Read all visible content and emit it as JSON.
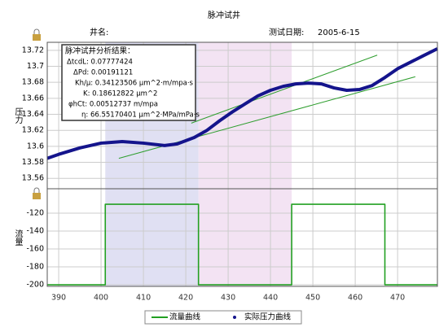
{
  "title": "脉冲试井",
  "well_name_label": "井名:",
  "test_date_label": "测试日期:",
  "test_date": "2005-6-15",
  "chart_data": [
    {
      "type": "line",
      "ylabel": "压力",
      "x": [
        387.3,
        390,
        395,
        400,
        405,
        410,
        415,
        418,
        422,
        425,
        428,
        431,
        434,
        437,
        440,
        443,
        446,
        449,
        452,
        455,
        458,
        461,
        464,
        467,
        470,
        473,
        476,
        479.4
      ],
      "series": [
        {
          "name": "实际压力曲线",
          "color": "#14148c",
          "values": [
            13.585,
            13.59,
            13.598,
            13.604,
            13.606,
            13.604,
            13.601,
            13.603,
            13.611,
            13.62,
            13.632,
            13.643,
            13.653,
            13.663,
            13.67,
            13.675,
            13.678,
            13.679,
            13.678,
            13.673,
            13.67,
            13.671,
            13.676,
            13.686,
            13.697,
            13.705,
            13.713,
            13.722
          ]
        }
      ],
      "trend_lines": [
        {
          "color": "#2e9e2e",
          "x": [
            421.3,
            465.2
          ],
          "values": [
            13.629,
            13.714
          ]
        },
        {
          "color": "#2e9e2e",
          "x": [
            404.2,
            474.2
          ],
          "values": [
            13.585,
            13.687
          ]
        }
      ],
      "bands": [
        {
          "from": 401,
          "to": 423,
          "color": "#d8d8f0"
        },
        {
          "from": 423,
          "to": 445,
          "color": "#f0dcf0"
        }
      ],
      "xlim": [
        387.3,
        479.4
      ],
      "ylim": [
        13.547,
        13.73
      ],
      "xticks": [
        390,
        400,
        410,
        420,
        430,
        440,
        450,
        460,
        470
      ],
      "yticks": [
        13.56,
        13.58,
        13.6,
        13.62,
        13.64,
        13.66,
        13.68,
        13.7,
        13.72
      ],
      "grid": true,
      "annotation": {
        "title": "脉冲试井分析结果：",
        "lines": [
          "ΔtcdL: 0.07777424",
          "ΔPd: 0.00191121",
          "Kh/μ: 0.34123506 μm^2·m/mpa·s",
          "K: 0.18612822 μm^2",
          "φhCt: 0.00512737 m/mpa",
          "η: 66.55170401 μm^2·MPa/mPa·s"
        ]
      }
    },
    {
      "type": "line",
      "ylabel": "流量",
      "x": [
        387.3,
        401,
        401,
        423,
        423,
        445,
        445,
        467,
        467,
        479.4
      ],
      "series": [
        {
          "name": "流量曲线",
          "color": "#22a022",
          "values": [
            -200,
            -200,
            -110,
            -110,
            -200,
            -200,
            -110,
            -110,
            -200,
            -200
          ]
        }
      ],
      "bands": [
        {
          "from": 401,
          "to": 423,
          "color": "#d8d8f0"
        },
        {
          "from": 423,
          "to": 445,
          "color": "#f0dcf0"
        }
      ],
      "xlim": [
        387.3,
        479.4
      ],
      "ylim": [
        -201.8,
        -92.7
      ],
      "xticks": [
        390,
        400,
        410,
        420,
        430,
        440,
        450,
        460,
        470
      ],
      "yticks": [
        -200,
        -180,
        -160,
        -140,
        -120
      ],
      "grid": true
    }
  ]
}
